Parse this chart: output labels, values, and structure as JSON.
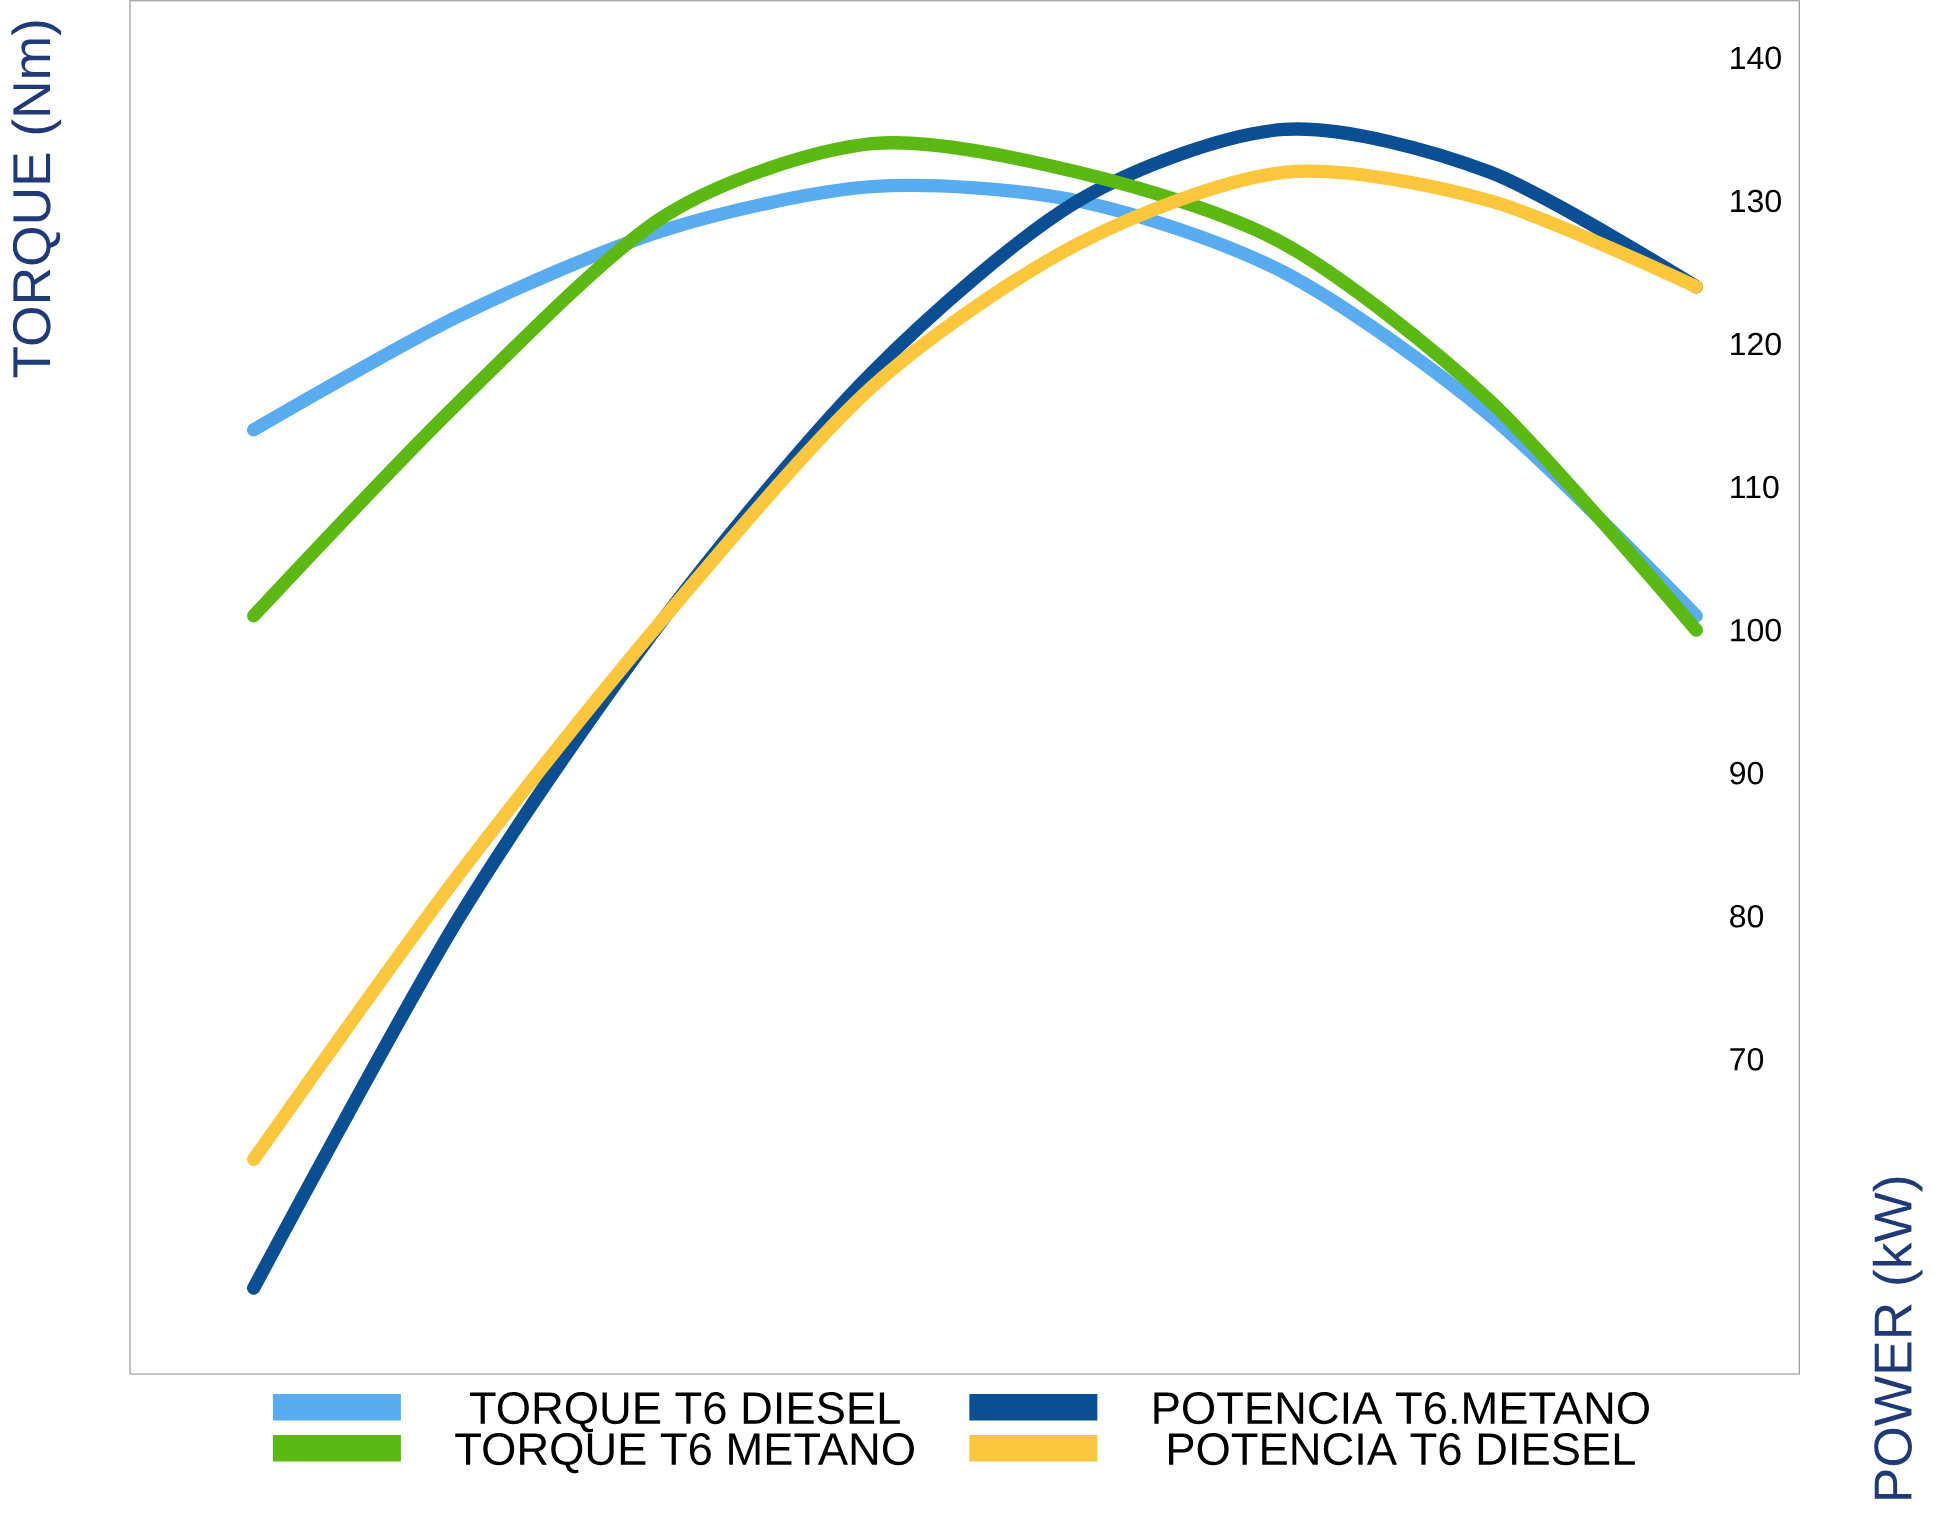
{
  "chart_data": {
    "type": "line",
    "ylabel": "TORQUE (Nm)",
    "y2label": "POWER (kW)",
    "categories": [
      null,
      null,
      null,
      null,
      null,
      null,
      null,
      null
    ],
    "ylim": [
      48,
      144
    ],
    "yticks": [
      70,
      80,
      90,
      100,
      110,
      120,
      130,
      140
    ],
    "tick_labels": "y",
    "legend": "bottom",
    "series": [
      {
        "name": "TORQUE T6 DIESEL",
        "color": "#5aacf0",
        "values": [
          114,
          122,
          128,
          131,
          130,
          125,
          115,
          101
        ]
      },
      {
        "name": "POTENCIA T6.METANO",
        "color": "#0a4f94",
        "values": [
          54,
          80,
          101,
          118,
          130,
          135,
          132,
          124
        ]
      },
      {
        "name": "TORQUE T6 METANO",
        "color": "#5cb914",
        "values": [
          101,
          116,
          129,
          134,
          132,
          127,
          116,
          100
        ]
      },
      {
        "name": "POTENCIA T6 DIESEL",
        "color": "#fcc73c",
        "values": [
          63,
          83,
          101,
          117,
          127,
          132,
          130,
          124
        ]
      }
    ]
  }
}
